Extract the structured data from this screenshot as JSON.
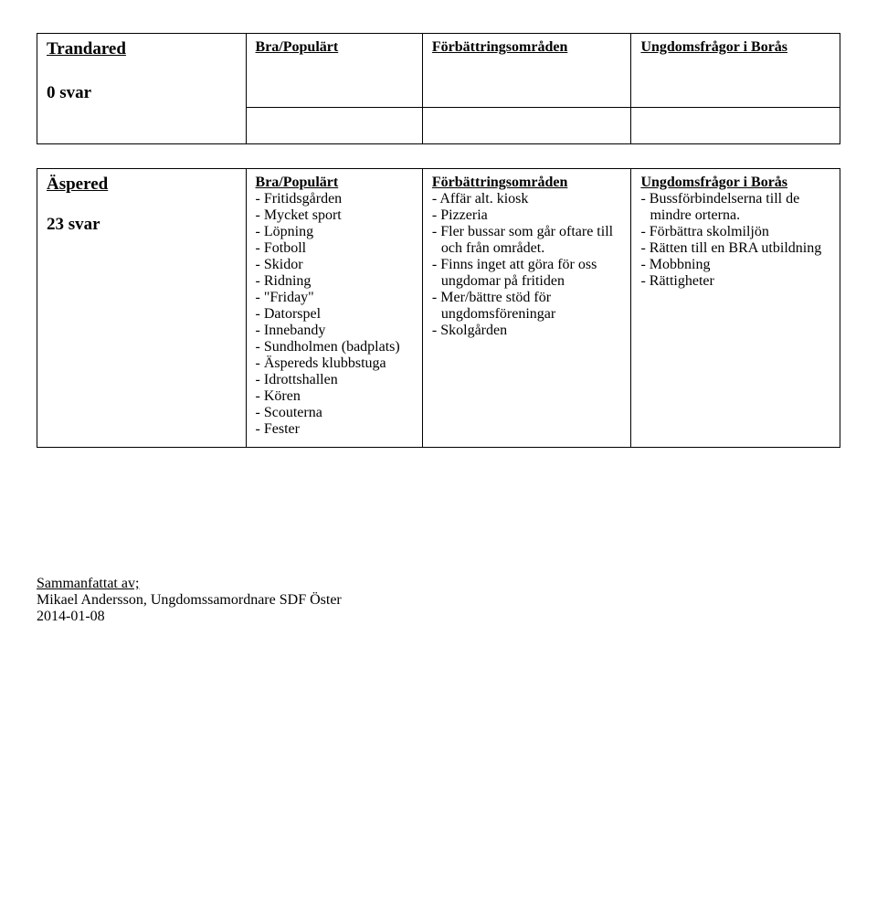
{
  "table1": {
    "row1": {
      "name": "Trandared",
      "h1": "Bra/Populärt",
      "h2": "Förbättringsområden",
      "h3": "Ungdomsfrågor i Borås"
    },
    "row2": {
      "svar": "0 svar"
    }
  },
  "table2": {
    "name": "Äspered",
    "svar": "23 svar",
    "colB_header": "Bra/Populärt",
    "colB": [
      "- Fritidsgården",
      "- Mycket sport",
      "- Löpning",
      "- Fotboll",
      "- Skidor",
      "- Ridning",
      "- \"Friday\"",
      "- Datorspel",
      "- Innebandy",
      "- Sundholmen (badplats)",
      "- Äspereds klubbstuga",
      "- Idrottshallen",
      "- Kören",
      "- Scouterna",
      "- Fester"
    ],
    "colC_header": "Förbättringsområden",
    "colC": [
      "- Affär alt. kiosk",
      "- Pizzeria",
      "- Fler bussar som går oftare till och från området.",
      "- Finns inget att göra för oss ungdomar på fritiden",
      "- Mer/bättre stöd för ungdomsföreningar",
      "- Skolgården"
    ],
    "colD_header": "Ungdomsfrågor i Borås",
    "colD": [
      "- Bussförbindelserna till de mindre orterna.",
      "- Förbättra skolmiljön",
      "- Rätten till en BRA utbildning",
      "- Mobbning",
      "- Rättigheter"
    ]
  },
  "footer": {
    "l1": "Sammanfattat av;",
    "l2": "Mikael Andersson, Ungdomssamordnare SDF Öster",
    "l3": "2014-01-08"
  }
}
